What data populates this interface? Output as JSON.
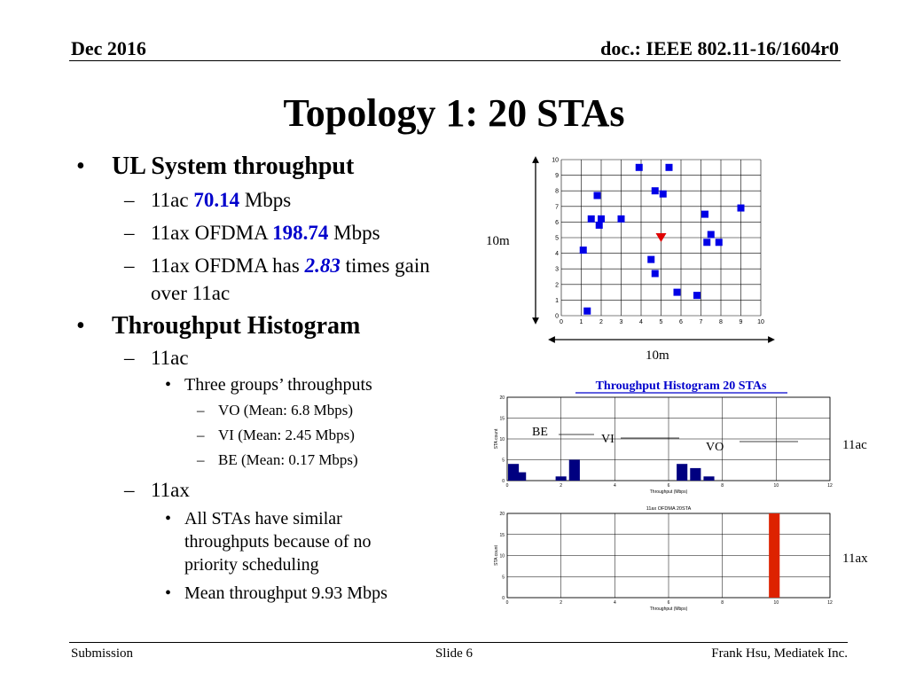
{
  "header": {
    "date": "Dec 2016",
    "doc": "doc.: IEEE 802.11-16/1604r0"
  },
  "title": "Topology 1: 20 STAs",
  "content": {
    "b1": "UL System throughput",
    "b1_sub": {
      "s1_pre": "11ac ",
      "s1_val": "70.14",
      "s1_post": " Mbps",
      "s2_pre": "11ax OFDMA ",
      "s2_val": "198.74",
      "s2_post": " Mbps",
      "s3_pre": "11ax OFDMA has ",
      "s3_val": "2.83",
      "s3_post": " times gain over 11ac"
    },
    "b2": "Throughput Histogram",
    "b2_ac": "11ac",
    "b2_ac_groups": "Three groups’ throughputs",
    "b2_ac_vo": "VO (Mean: 6.8 Mbps)",
    "b2_ac_vi": "VI (Mean: 2.45 Mbps)",
    "b2_ac_be": "BE (Mean: 0.17 Mbps)",
    "b2_ax": "11ax",
    "b2_ax_similar": "All STAs have similar throughputs because of no priority scheduling",
    "b2_ax_mean": "Mean throughput 9.93 Mbps"
  },
  "dimension_labels": {
    "vertical": "10m",
    "horizontal": "10m"
  },
  "side_labels": {
    "ac": "11ac",
    "ax": "11ax"
  },
  "group_labels": {
    "be": "BE",
    "vi": "VI",
    "vo": "VO"
  },
  "footer": {
    "left": "Submission",
    "center": "Slide 6",
    "right": "Frank Hsu, Mediatek Inc."
  },
  "colors": {
    "sta": "#0000e6",
    "ap": "#e00000",
    "bar_ac": "#000080",
    "bar_ax": "#dd2200",
    "title_blue": "#0000cc"
  },
  "chart_data": [
    {
      "type": "scatter",
      "xlim": [
        0,
        10
      ],
      "ylim": [
        0,
        10
      ],
      "xticks": [
        "0",
        "1",
        "2",
        "3",
        "4",
        "5",
        "6",
        "7",
        "8",
        "9",
        "10"
      ],
      "yticks": [
        "0",
        "1",
        "2",
        "3",
        "4",
        "5",
        "6",
        "7",
        "8",
        "9",
        "10"
      ],
      "grid": true,
      "series": [
        {
          "marker": "square",
          "points": [
            [
              1.3,
              0.3
            ],
            [
              1.1,
              4.2
            ],
            [
              1.5,
              6.2
            ],
            [
              1.9,
              5.8
            ],
            [
              2.0,
              6.2
            ],
            [
              1.8,
              7.7
            ],
            [
              3.0,
              6.2
            ],
            [
              3.9,
              9.5
            ],
            [
              4.5,
              3.6
            ],
            [
              4.7,
              2.7
            ],
            [
              4.7,
              8.0
            ],
            [
              5.1,
              7.8
            ],
            [
              5.4,
              9.5
            ],
            [
              5.8,
              1.5
            ],
            [
              6.8,
              1.3
            ],
            [
              7.2,
              6.5
            ],
            [
              7.3,
              4.7
            ],
            [
              7.5,
              5.2
            ],
            [
              7.9,
              4.7
            ],
            [
              9.0,
              6.9
            ]
          ]
        },
        {
          "marker": "triangle-down",
          "points": [
            [
              5.0,
              5.0
            ]
          ]
        }
      ]
    },
    {
      "type": "bar",
      "title": "Throughput Histogram 20 STAs",
      "xlabel": "Throughput (Mbps)",
      "ylabel": "STA count",
      "xlim": [
        0,
        12
      ],
      "ylim": [
        0,
        20
      ],
      "xticks": [
        "0",
        "2",
        "4",
        "6",
        "8",
        "10",
        "12"
      ],
      "yticks": [
        "0",
        "5",
        "10",
        "15",
        "20"
      ],
      "bins": [
        {
          "x": 0.0,
          "value": 4
        },
        {
          "x": 0.5,
          "value": 2
        },
        {
          "x": 2.0,
          "value": 1
        },
        {
          "x": 2.5,
          "value": 5
        },
        {
          "x": 6.5,
          "value": 4
        },
        {
          "x": 7.0,
          "value": 3
        },
        {
          "x": 7.5,
          "value": 1
        }
      ]
    },
    {
      "type": "bar",
      "title": "11ax OFDMA 20STA",
      "xlabel": "Throughput (Mbps)",
      "ylabel": "STA count",
      "xlim": [
        0,
        12
      ],
      "ylim": [
        0,
        20
      ],
      "xticks": [
        "0",
        "2",
        "4",
        "6",
        "8",
        "10",
        "12"
      ],
      "yticks": [
        "0",
        "5",
        "10",
        "15",
        "20"
      ],
      "bins": [
        {
          "x": 9.93,
          "value": 20
        }
      ]
    }
  ]
}
